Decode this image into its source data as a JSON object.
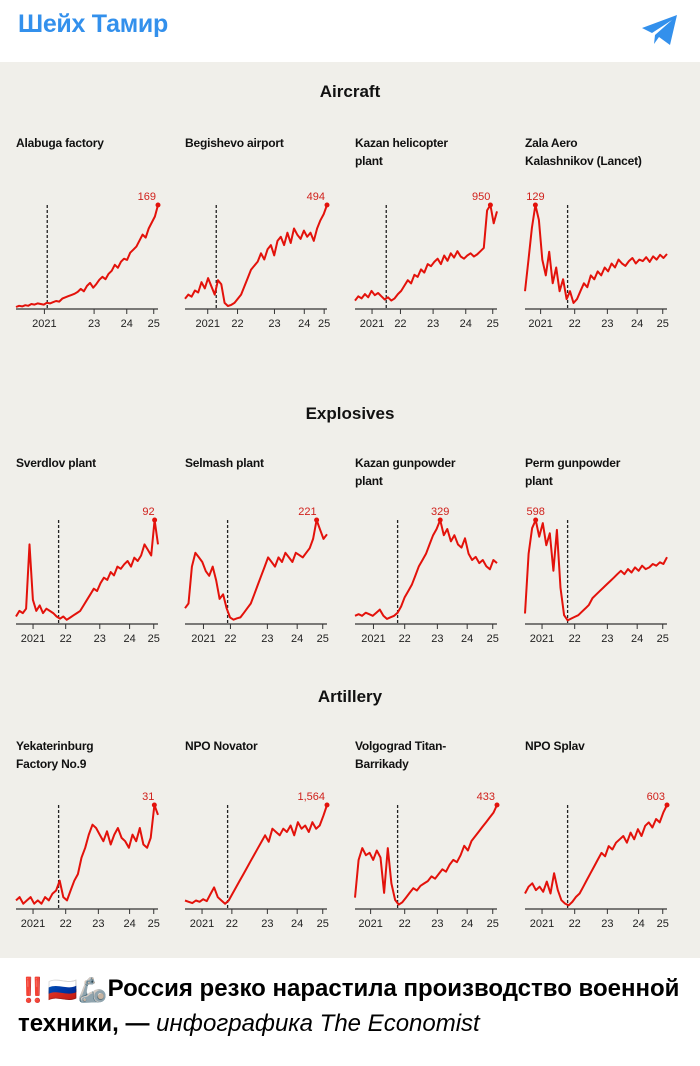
{
  "header": {
    "channel_name": "Шейх Тамир",
    "share_icon": "telegram-icon"
  },
  "sections": [
    {
      "title": "Aircraft"
    },
    {
      "title": "Explosives"
    },
    {
      "title": "Artillery"
    }
  ],
  "caption": {
    "emojis": "‼️🇷🇺🦾",
    "main": "Россия резко нарастила производство военной техники, — ",
    "italic": "инфографика The Economist"
  },
  "colors": {
    "series": "#e3120b",
    "axis": "#333333",
    "label": "#d0211c",
    "accent": "#3390ec"
  },
  "chart_data": [
    {
      "type": "line",
      "section": "Aircraft",
      "title": "Alabuga factory",
      "peak_label": "169",
      "dashed_line_at": "2021",
      "ylim": [
        0,
        169
      ],
      "x_ticks": [
        "2021",
        "23",
        "24",
        "25"
      ],
      "x_tick_pos": [
        0.2,
        0.55,
        0.78,
        0.97
      ],
      "values": [
        0,
        2,
        1,
        3,
        2,
        5,
        4,
        6,
        5,
        4,
        7,
        6,
        8,
        10,
        9,
        14,
        16,
        18,
        20,
        22,
        25,
        30,
        26,
        35,
        40,
        32,
        38,
        45,
        50,
        46,
        55,
        60,
        70,
        65,
        75,
        80,
        78,
        90,
        95,
        100,
        110,
        120,
        115,
        130,
        140,
        150,
        169
      ]
    },
    {
      "type": "line",
      "section": "Aircraft",
      "title": "Begishevo airport",
      "peak_label": "494",
      "dashed_line_at": "2021",
      "ylim": [
        0,
        494
      ],
      "x_ticks": [
        "2021",
        "22",
        "23",
        "24",
        "25"
      ],
      "x_tick_pos": [
        0.16,
        0.37,
        0.63,
        0.84,
        0.98
      ],
      "values": [
        40,
        60,
        50,
        80,
        70,
        120,
        90,
        140,
        100,
        60,
        130,
        110,
        20,
        5,
        10,
        20,
        40,
        60,
        100,
        140,
        180,
        200,
        220,
        260,
        230,
        280,
        300,
        250,
        320,
        340,
        300,
        360,
        310,
        380,
        350,
        330,
        370,
        340,
        360,
        320,
        380,
        420,
        450,
        494
      ]
    },
    {
      "type": "line",
      "section": "Aircraft",
      "title": "Kazan helicopter\nplant",
      "peak_label": "950",
      "dashed_line_at": "2021",
      "ylim": [
        0,
        950
      ],
      "x_ticks": [
        "2021",
        "22",
        "23",
        "24",
        "25"
      ],
      "x_tick_pos": [
        0.12,
        0.32,
        0.55,
        0.78,
        0.97
      ],
      "values": [
        60,
        100,
        80,
        120,
        90,
        150,
        110,
        130,
        100,
        70,
        90,
        60,
        80,
        120,
        150,
        200,
        250,
        220,
        300,
        280,
        350,
        320,
        400,
        380,
        420,
        450,
        400,
        480,
        430,
        500,
        460,
        520,
        470,
        450,
        480,
        500,
        470,
        490,
        520,
        550,
        900,
        950,
        780,
        890
      ]
    },
    {
      "type": "line",
      "section": "Aircraft",
      "title": "Zala Aero\nKalashnikov (Lancet)",
      "peak_label": "129",
      "dashed_line_at": "2022",
      "ylim": [
        0,
        129
      ],
      "x_ticks": [
        "2021",
        "22",
        "23",
        "24",
        "25"
      ],
      "x_tick_pos": [
        0.11,
        0.35,
        0.58,
        0.79,
        0.97
      ],
      "values": [
        20,
        60,
        100,
        129,
        110,
        60,
        40,
        70,
        30,
        50,
        20,
        35,
        10,
        20,
        5,
        10,
        20,
        30,
        25,
        40,
        35,
        45,
        40,
        50,
        45,
        55,
        50,
        60,
        55,
        52,
        58,
        62,
        55,
        60,
        58,
        63,
        57,
        64,
        60,
        66,
        62,
        67
      ]
    },
    {
      "type": "line",
      "section": "Explosives",
      "title": "Sverdlov plant",
      "peak_label": "92",
      "dashed_line_at": "2022",
      "ylim": [
        0,
        92
      ],
      "x_ticks": [
        "2021",
        "22",
        "23",
        "24",
        "25"
      ],
      "x_tick_pos": [
        0.12,
        0.35,
        0.59,
        0.8,
        0.97
      ],
      "values": [
        5,
        10,
        8,
        12,
        70,
        20,
        10,
        15,
        8,
        12,
        10,
        8,
        5,
        3,
        5,
        2,
        4,
        6,
        8,
        10,
        15,
        20,
        25,
        30,
        28,
        35,
        40,
        38,
        45,
        42,
        50,
        48,
        52,
        55,
        50,
        58,
        55,
        60,
        70,
        65,
        60,
        92,
        70
      ]
    },
    {
      "type": "line",
      "section": "Explosives",
      "title": "Selmash plant",
      "peak_label": "221",
      "dashed_line_at": "2022",
      "ylim": [
        0,
        221
      ],
      "x_ticks": [
        "2021",
        "22",
        "23",
        "24",
        "25"
      ],
      "x_tick_pos": [
        0.13,
        0.32,
        0.58,
        0.79,
        0.97
      ],
      "values": [
        30,
        40,
        120,
        150,
        140,
        130,
        110,
        100,
        120,
        90,
        50,
        60,
        30,
        10,
        5,
        8,
        10,
        20,
        30,
        40,
        60,
        80,
        100,
        120,
        140,
        130,
        120,
        140,
        130,
        150,
        140,
        130,
        150,
        145,
        140,
        150,
        160,
        180,
        221,
        200,
        180,
        190
      ]
    },
    {
      "type": "line",
      "section": "Explosives",
      "title": "Kazan gunpowder\nplant",
      "peak_label": "329",
      "dashed_line_at": "2022",
      "ylim": [
        0,
        329
      ],
      "x_ticks": [
        "2021",
        "22",
        "23",
        "24",
        "25"
      ],
      "x_tick_pos": [
        0.13,
        0.35,
        0.58,
        0.79,
        0.97
      ],
      "values": [
        20,
        25,
        20,
        30,
        25,
        20,
        30,
        40,
        20,
        10,
        15,
        20,
        30,
        50,
        80,
        100,
        120,
        150,
        180,
        200,
        220,
        250,
        280,
        300,
        329,
        280,
        300,
        260,
        280,
        250,
        240,
        270,
        220,
        200,
        210,
        190,
        200,
        180,
        170,
        200,
        190
      ]
    },
    {
      "type": "line",
      "section": "Explosives",
      "title": "Perm gunpowder\nplant",
      "peak_label": "598",
      "dashed_line_at": "2022",
      "ylim": [
        0,
        598
      ],
      "x_ticks": [
        "2021",
        "22",
        "23",
        "24",
        "25"
      ],
      "x_tick_pos": [
        0.12,
        0.35,
        0.58,
        0.79,
        0.97
      ],
      "values": [
        50,
        400,
        550,
        598,
        500,
        580,
        450,
        520,
        300,
        540,
        200,
        40,
        10,
        20,
        30,
        40,
        60,
        80,
        100,
        140,
        160,
        180,
        200,
        220,
        240,
        260,
        280,
        300,
        280,
        310,
        290,
        320,
        300,
        330,
        310,
        320,
        340,
        330,
        350,
        340,
        380
      ]
    },
    {
      "type": "line",
      "section": "Artillery",
      "title": "Yekaterinburg\nFactory No.9",
      "peak_label": "31",
      "dashed_line_at": "2022",
      "ylim": [
        0,
        31
      ],
      "x_ticks": [
        "2021",
        "22",
        "23",
        "24",
        "25"
      ],
      "x_tick_pos": [
        0.12,
        0.35,
        0.58,
        0.8,
        0.97
      ],
      "values": [
        2,
        3,
        1,
        2,
        3,
        1,
        2,
        1,
        3,
        2,
        4,
        5,
        8,
        3,
        2,
        5,
        8,
        10,
        15,
        18,
        22,
        25,
        24,
        22,
        20,
        23,
        19,
        22,
        24,
        21,
        20,
        18,
        22,
        20,
        24,
        19,
        18,
        21,
        31,
        28
      ]
    },
    {
      "type": "line",
      "section": "Artillery",
      "title": "NPO Novator",
      "peak_label": "1,564",
      "dashed_line_at": "2022",
      "ylim": [
        0,
        1564
      ],
      "x_ticks": [
        "2021",
        "22",
        "23",
        "24",
        "25"
      ],
      "x_tick_pos": [
        0.12,
        0.33,
        0.58,
        0.79,
        0.97
      ],
      "values": [
        100,
        80,
        60,
        100,
        80,
        120,
        90,
        200,
        300,
        150,
        100,
        50,
        100,
        200,
        300,
        400,
        500,
        600,
        700,
        800,
        900,
        1000,
        1100,
        1000,
        1200,
        1150,
        1100,
        1200,
        1150,
        1250,
        1100,
        1300,
        1200,
        1250,
        1150,
        1300,
        1200,
        1250,
        1400,
        1564
      ]
    },
    {
      "type": "line",
      "section": "Artillery",
      "title": "Volgograd Titan-\nBarrikady",
      "peak_label": "433",
      "dashed_line_at": "2022",
      "ylim": [
        0,
        433
      ],
      "x_ticks": [
        "2021",
        "22",
        "23",
        "24",
        "25"
      ],
      "x_tick_pos": [
        0.11,
        0.35,
        0.58,
        0.79,
        0.97
      ],
      "values": [
        40,
        200,
        250,
        220,
        230,
        200,
        240,
        210,
        60,
        250,
        100,
        30,
        10,
        20,
        40,
        60,
        80,
        70,
        90,
        100,
        110,
        130,
        120,
        140,
        160,
        150,
        180,
        200,
        190,
        220,
        260,
        240,
        280,
        300,
        320,
        340,
        360,
        380,
        400,
        433
      ]
    },
    {
      "type": "line",
      "section": "Artillery",
      "title": "NPO Splav",
      "peak_label": "603",
      "dashed_line_at": "2022",
      "ylim": [
        0,
        603
      ],
      "x_ticks": [
        "2021",
        "22",
        "23",
        "24",
        "25"
      ],
      "x_tick_pos": [
        0.12,
        0.35,
        0.58,
        0.8,
        0.97
      ],
      "values": [
        80,
        120,
        140,
        100,
        120,
        90,
        150,
        80,
        200,
        100,
        40,
        20,
        10,
        30,
        60,
        80,
        120,
        160,
        200,
        240,
        280,
        320,
        300,
        360,
        340,
        380,
        400,
        420,
        380,
        440,
        400,
        460,
        420,
        480,
        500,
        470,
        520,
        500,
        560,
        603
      ]
    }
  ]
}
